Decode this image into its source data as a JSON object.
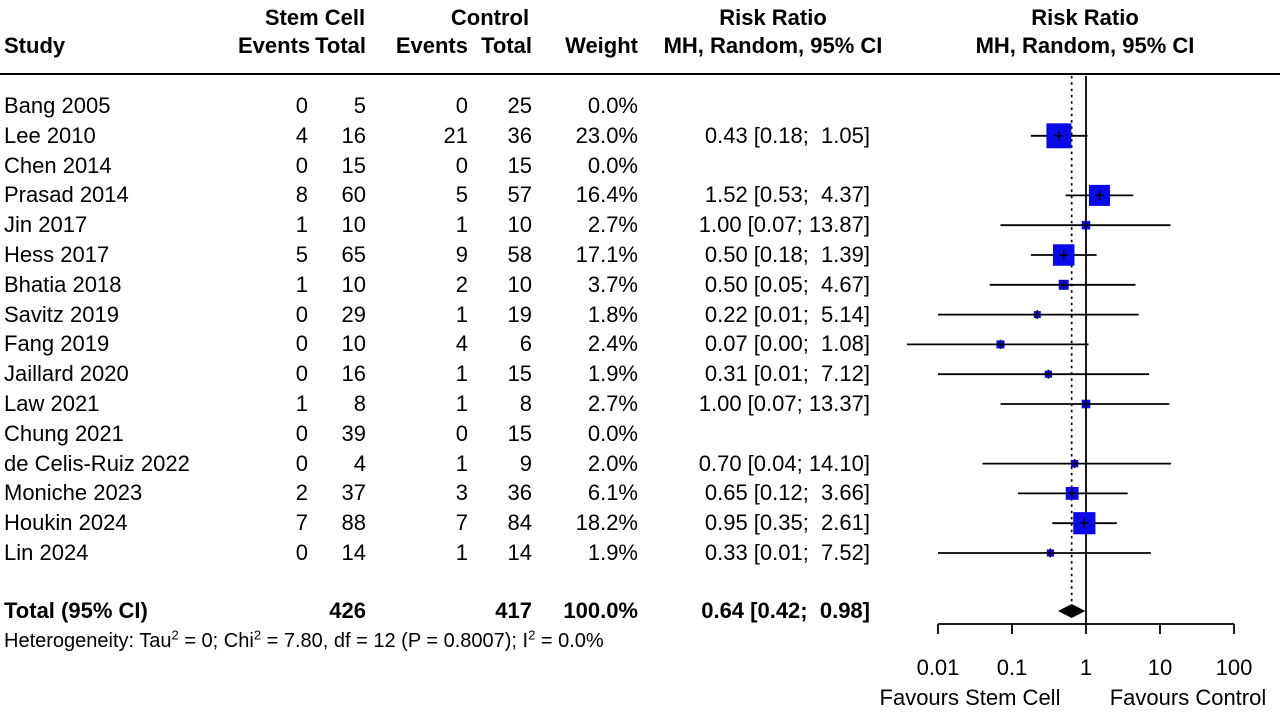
{
  "header": {
    "study": "Study",
    "group1": "Stem Cell",
    "group2": "Control",
    "sc_events": "Events",
    "sc_total": "Total",
    "c_events": "Events",
    "c_total": "Total",
    "weight": "Weight",
    "effect_col_line1": "Risk Ratio",
    "effect_col_line2": "MH, Random, 95% CI",
    "plot_col_line1": "Risk Ratio",
    "plot_col_line2": "MH, Random, 95% CI"
  },
  "chart_data": {
    "type": "forest",
    "effect_measure": "Risk Ratio",
    "model": "MH, Random, 95% CI",
    "x_scale": "log",
    "axis_ticks": [
      "0.01",
      "0.1",
      "1",
      "10",
      "100"
    ],
    "axis_range": [
      0.01,
      100
    ],
    "ref_line": 1,
    "pooled_line": 0.64,
    "marker_color": "#0A0AE6",
    "xlabel_left": "Favours Stem Cell",
    "xlabel_right": "Favours Control",
    "studies": [
      {
        "name": "Bang 2005",
        "sc_events": 0,
        "sc_total": 5,
        "c_events": 0,
        "c_total": 25,
        "weight_pct": 0.0,
        "weight_label": "0.0%",
        "rr": null,
        "ci_low": null,
        "ci_high": null,
        "rr_label": ""
      },
      {
        "name": "Lee 2010",
        "sc_events": 4,
        "sc_total": 16,
        "c_events": 21,
        "c_total": 36,
        "weight_pct": 23.0,
        "weight_label": "23.0%",
        "rr": 0.43,
        "ci_low": 0.18,
        "ci_high": 1.05,
        "rr_label": "0.43 [0.18;  1.05]"
      },
      {
        "name": "Chen 2014",
        "sc_events": 0,
        "sc_total": 15,
        "c_events": 0,
        "c_total": 15,
        "weight_pct": 0.0,
        "weight_label": "0.0%",
        "rr": null,
        "ci_low": null,
        "ci_high": null,
        "rr_label": ""
      },
      {
        "name": "Prasad 2014",
        "sc_events": 8,
        "sc_total": 60,
        "c_events": 5,
        "c_total": 57,
        "weight_pct": 16.4,
        "weight_label": "16.4%",
        "rr": 1.52,
        "ci_low": 0.53,
        "ci_high": 4.37,
        "rr_label": "1.52 [0.53;  4.37]"
      },
      {
        "name": "Jin 2017",
        "sc_events": 1,
        "sc_total": 10,
        "c_events": 1,
        "c_total": 10,
        "weight_pct": 2.7,
        "weight_label": "2.7%",
        "rr": 1.0,
        "ci_low": 0.07,
        "ci_high": 13.87,
        "rr_label": "1.00 [0.07; 13.87]"
      },
      {
        "name": "Hess 2017",
        "sc_events": 5,
        "sc_total": 65,
        "c_events": 9,
        "c_total": 58,
        "weight_pct": 17.1,
        "weight_label": "17.1%",
        "rr": 0.5,
        "ci_low": 0.18,
        "ci_high": 1.39,
        "rr_label": "0.50 [0.18;  1.39]"
      },
      {
        "name": "Bhatia 2018",
        "sc_events": 1,
        "sc_total": 10,
        "c_events": 2,
        "c_total": 10,
        "weight_pct": 3.7,
        "weight_label": "3.7%",
        "rr": 0.5,
        "ci_low": 0.05,
        "ci_high": 4.67,
        "rr_label": "0.50 [0.05;  4.67]"
      },
      {
        "name": "Savitz 2019",
        "sc_events": 0,
        "sc_total": 29,
        "c_events": 1,
        "c_total": 19,
        "weight_pct": 1.8,
        "weight_label": "1.8%",
        "rr": 0.22,
        "ci_low": 0.01,
        "ci_high": 5.14,
        "rr_label": "0.22 [0.01;  5.14]"
      },
      {
        "name": "Fang 2019",
        "sc_events": 0,
        "sc_total": 10,
        "c_events": 4,
        "c_total": 6,
        "weight_pct": 2.4,
        "weight_label": "2.4%",
        "rr": 0.07,
        "ci_low": 0.0,
        "ci_high": 1.08,
        "rr_label": "0.07 [0.00;  1.08]"
      },
      {
        "name": "Jaillard 2020",
        "sc_events": 0,
        "sc_total": 16,
        "c_events": 1,
        "c_total": 15,
        "weight_pct": 1.9,
        "weight_label": "1.9%",
        "rr": 0.31,
        "ci_low": 0.01,
        "ci_high": 7.12,
        "rr_label": "0.31 [0.01;  7.12]"
      },
      {
        "name": "Law 2021",
        "sc_events": 1,
        "sc_total": 8,
        "c_events": 1,
        "c_total": 8,
        "weight_pct": 2.7,
        "weight_label": "2.7%",
        "rr": 1.0,
        "ci_low": 0.07,
        "ci_high": 13.37,
        "rr_label": "1.00 [0.07; 13.37]"
      },
      {
        "name": "Chung 2021",
        "sc_events": 0,
        "sc_total": 39,
        "c_events": 0,
        "c_total": 15,
        "weight_pct": 0.0,
        "weight_label": "0.0%",
        "rr": null,
        "ci_low": null,
        "ci_high": null,
        "rr_label": ""
      },
      {
        "name": "de Celis-Ruiz 2022",
        "sc_events": 0,
        "sc_total": 4,
        "c_events": 1,
        "c_total": 9,
        "weight_pct": 2.0,
        "weight_label": "2.0%",
        "rr": 0.7,
        "ci_low": 0.04,
        "ci_high": 14.1,
        "rr_label": "0.70 [0.04; 14.10]"
      },
      {
        "name": "Moniche 2023",
        "sc_events": 2,
        "sc_total": 37,
        "c_events": 3,
        "c_total": 36,
        "weight_pct": 6.1,
        "weight_label": "6.1%",
        "rr": 0.65,
        "ci_low": 0.12,
        "ci_high": 3.66,
        "rr_label": "0.65 [0.12;  3.66]"
      },
      {
        "name": "Houkin 2024",
        "sc_events": 7,
        "sc_total": 88,
        "c_events": 7,
        "c_total": 84,
        "weight_pct": 18.2,
        "weight_label": "18.2%",
        "rr": 0.95,
        "ci_low": 0.35,
        "ci_high": 2.61,
        "rr_label": "0.95 [0.35;  2.61]"
      },
      {
        "name": "Lin 2024",
        "sc_events": 0,
        "sc_total": 14,
        "c_events": 1,
        "c_total": 14,
        "weight_pct": 1.9,
        "weight_label": "1.9%",
        "rr": 0.33,
        "ci_low": 0.01,
        "ci_high": 7.52,
        "rr_label": "0.33 [0.01;  7.52]"
      }
    ],
    "total": {
      "label": "Total (95% CI)",
      "sc_total": 426,
      "c_total": 417,
      "weight_label": "100.0%",
      "rr": 0.64,
      "ci_low": 0.42,
      "ci_high": 0.98,
      "rr_label": "0.64 [0.42;  0.98]"
    },
    "heterogeneity_segments": [
      {
        "text": "Heterogeneity: Tau"
      },
      {
        "sup": "2"
      },
      {
        "text": " = 0; Chi"
      },
      {
        "sup": "2"
      },
      {
        "text": " = 7.80, df = 12 (P = 0.8007); I"
      },
      {
        "sup": "2"
      },
      {
        "text": " = 0.0%"
      }
    ]
  }
}
